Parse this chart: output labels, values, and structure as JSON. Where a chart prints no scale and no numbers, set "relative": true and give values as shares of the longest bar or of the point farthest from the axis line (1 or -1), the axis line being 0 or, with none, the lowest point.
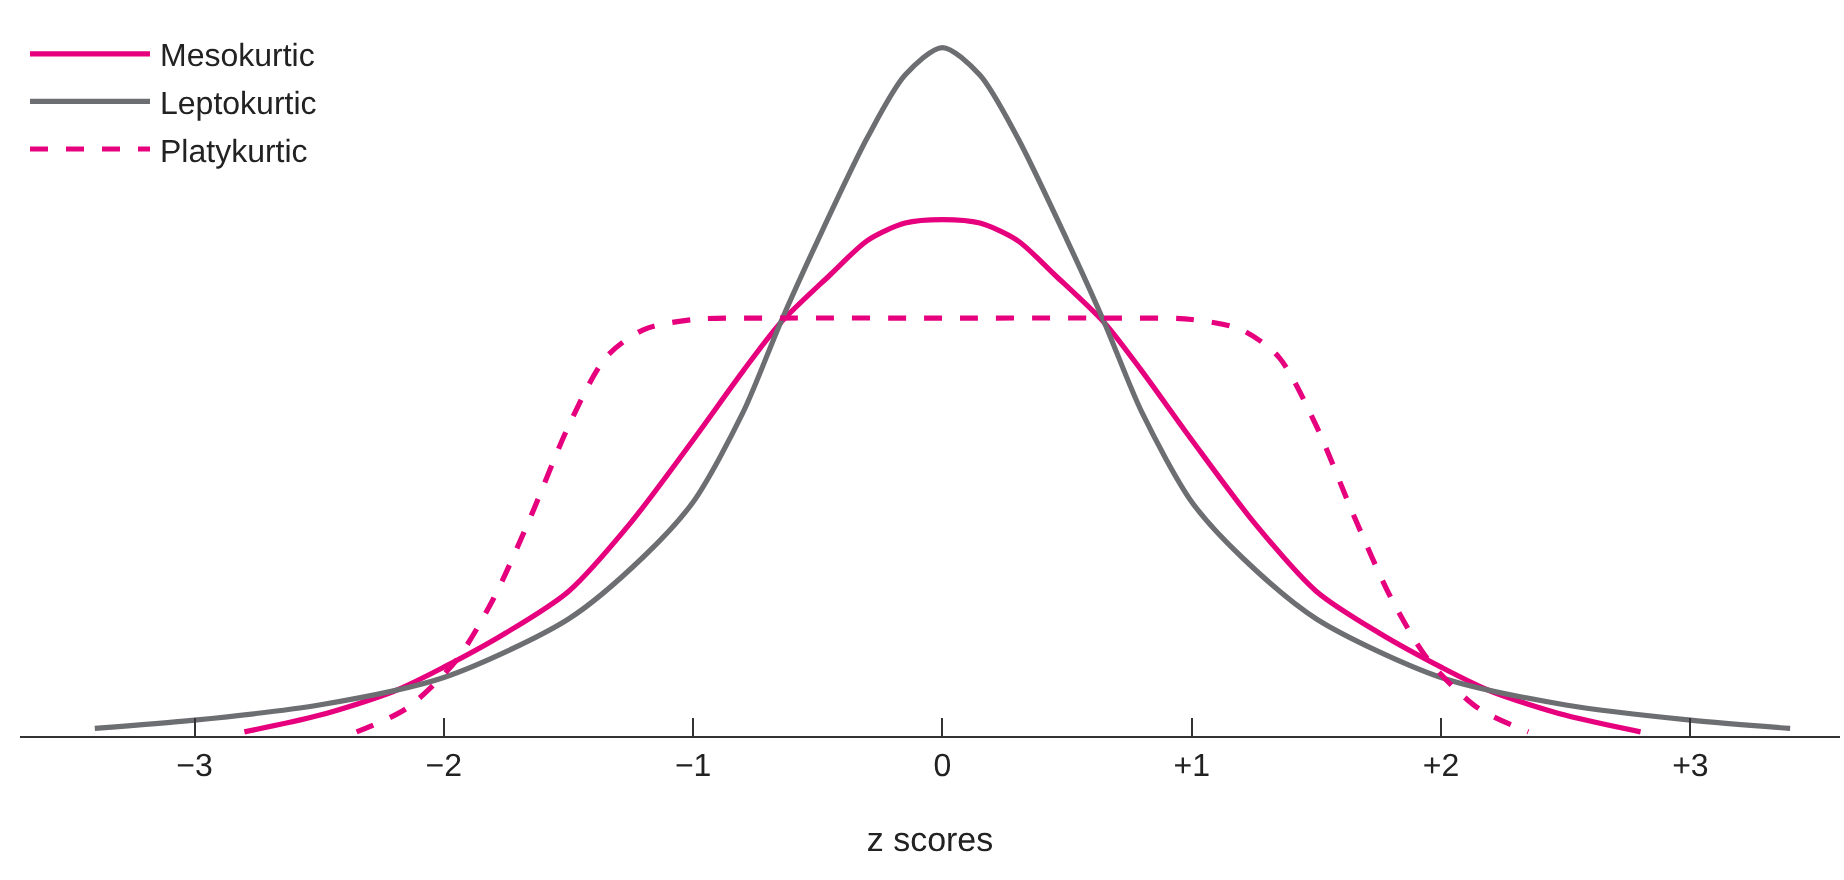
{
  "chart_data": {
    "type": "line",
    "relative": true,
    "xlabel": "z scores",
    "legend": "top left",
    "marker": "none",
    "xlim": [
      -3.7,
      3.6
    ],
    "xticks": [
      {
        "value": -3,
        "label": "−3"
      },
      {
        "value": -2,
        "label": "−2"
      },
      {
        "value": -1,
        "label": "−1"
      },
      {
        "value": 0,
        "label": "0"
      },
      {
        "value": 1,
        "label": "+1"
      },
      {
        "value": 2,
        "label": "+2"
      },
      {
        "value": 3,
        "label": "+3"
      }
    ],
    "series": [
      {
        "name": "Mesokurtic",
        "color": "#e6007e",
        "line_style": "solid",
        "x": [
          -2.8,
          -2.5,
          -2.2,
          -2,
          -1.75,
          -1.5,
          -1.25,
          -1,
          -0.8,
          -0.65,
          -0.45,
          -0.3,
          -0.15,
          0,
          0.15,
          0.3,
          0.45,
          0.65,
          0.8,
          1,
          1.25,
          1.5,
          1.75,
          2,
          2.2,
          2.5,
          2.8
        ],
        "values": [
          0.006,
          0.03,
          0.065,
          0.1,
          0.15,
          0.21,
          0.31,
          0.43,
          0.53,
          0.6,
          0.67,
          0.72,
          0.745,
          0.75,
          0.745,
          0.72,
          0.67,
          0.6,
          0.53,
          0.43,
          0.31,
          0.21,
          0.15,
          0.1,
          0.065,
          0.03,
          0.006
        ]
      },
      {
        "name": "Leptokurtic",
        "color": "#6d6e71",
        "line_style": "solid",
        "x": [
          -3.4,
          -3,
          -2.5,
          -2,
          -1.5,
          -1.2,
          -1,
          -0.8,
          -0.65,
          -0.5,
          -0.3,
          -0.15,
          0,
          0.15,
          0.3,
          0.5,
          0.65,
          0.8,
          1,
          1.2,
          1.5,
          2,
          2.5,
          3,
          3.4
        ],
        "values": [
          0.011,
          0.023,
          0.045,
          0.085,
          0.17,
          0.26,
          0.34,
          0.47,
          0.6,
          0.72,
          0.87,
          0.96,
          1.0,
          0.96,
          0.87,
          0.72,
          0.6,
          0.47,
          0.34,
          0.26,
          0.17,
          0.085,
          0.045,
          0.023,
          0.011
        ]
      },
      {
        "name": "Platykurtic",
        "color": "#e6007e",
        "line_style": "dashed",
        "x": [
          -2.35,
          -2.15,
          -1.95,
          -1.8,
          -1.65,
          -1.5,
          -1.35,
          -1.2,
          -1,
          -0.65,
          0,
          0.65,
          1,
          1.2,
          1.35,
          1.5,
          1.65,
          1.8,
          1.95,
          2.15,
          2.35
        ],
        "values": [
          0.006,
          0.04,
          0.11,
          0.2,
          0.32,
          0.45,
          0.55,
          0.59,
          0.605,
          0.607,
          0.607,
          0.607,
          0.605,
          0.59,
          0.55,
          0.45,
          0.32,
          0.2,
          0.11,
          0.04,
          0.006
        ]
      }
    ]
  }
}
